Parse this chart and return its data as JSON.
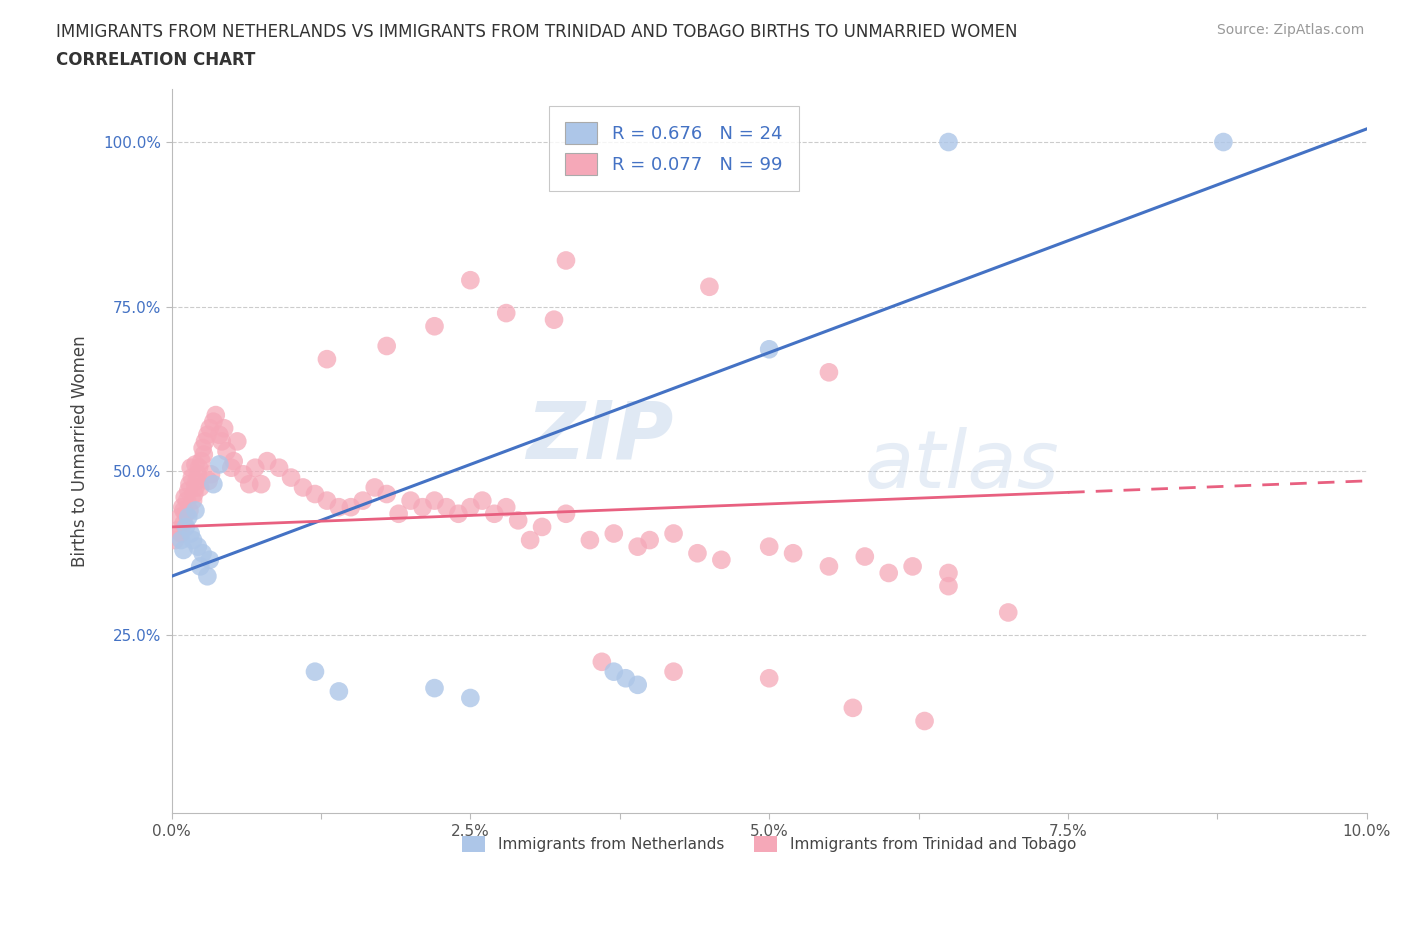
{
  "title_line1": "IMMIGRANTS FROM NETHERLANDS VS IMMIGRANTS FROM TRINIDAD AND TOBAGO BIRTHS TO UNMARRIED WOMEN",
  "title_line2": "CORRELATION CHART",
  "source_text": "Source: ZipAtlas.com",
  "ylabel": "Births to Unmarried Women",
  "xlim": [
    0.0,
    0.1
  ],
  "ylim": [
    -0.02,
    1.08
  ],
  "xtick_labels": [
    "0.0%",
    "",
    "2.5%",
    "",
    "5.0%",
    "",
    "7.5%",
    "",
    "10.0%"
  ],
  "xtick_vals": [
    0.0,
    0.0125,
    0.025,
    0.0375,
    0.05,
    0.0625,
    0.075,
    0.0875,
    0.1
  ],
  "ytick_labels": [
    "25.0%",
    "50.0%",
    "75.0%",
    "100.0%"
  ],
  "ytick_vals": [
    0.25,
    0.5,
    0.75,
    1.0
  ],
  "watermark_zip": "ZIP",
  "watermark_atlas": "atlas",
  "blue_R": "0.676",
  "blue_N": "24",
  "pink_R": "0.077",
  "pink_N": "99",
  "blue_color": "#adc6e8",
  "pink_color": "#f5a8b8",
  "blue_line_color": "#4472c4",
  "pink_line_color": "#e86080",
  "legend_label_blue": "Immigrants from Netherlands",
  "legend_label_pink": "Immigrants from Trinidad and Tobago",
  "blue_line_x": [
    0.0,
    0.1
  ],
  "blue_line_y": [
    0.34,
    1.02
  ],
  "pink_line_x": [
    0.0,
    0.1
  ],
  "pink_line_y": [
    0.415,
    0.485
  ],
  "blue_scatter_x": [
    0.0008,
    0.001,
    0.0012,
    0.0014,
    0.0016,
    0.0018,
    0.002,
    0.0022,
    0.0024,
    0.0026,
    0.003,
    0.0032,
    0.0035,
    0.004,
    0.012,
    0.014,
    0.022,
    0.025,
    0.037,
    0.038,
    0.039,
    0.05,
    0.065,
    0.088
  ],
  "blue_scatter_y": [
    0.395,
    0.38,
    0.415,
    0.43,
    0.405,
    0.395,
    0.44,
    0.385,
    0.355,
    0.375,
    0.34,
    0.365,
    0.48,
    0.51,
    0.195,
    0.165,
    0.17,
    0.155,
    0.195,
    0.185,
    0.175,
    0.685,
    1.0,
    1.0
  ],
  "pink_scatter_x": [
    0.0003,
    0.0005,
    0.0007,
    0.0008,
    0.0009,
    0.001,
    0.001,
    0.0011,
    0.0012,
    0.0013,
    0.0014,
    0.0015,
    0.0015,
    0.0016,
    0.0017,
    0.0018,
    0.0019,
    0.002,
    0.002,
    0.0021,
    0.0022,
    0.0023,
    0.0024,
    0.0025,
    0.0026,
    0.0027,
    0.0028,
    0.003,
    0.0031,
    0.0032,
    0.0033,
    0.0035,
    0.0037,
    0.004,
    0.0042,
    0.0044,
    0.0046,
    0.005,
    0.0052,
    0.0055,
    0.006,
    0.0065,
    0.007,
    0.0075,
    0.008,
    0.009,
    0.01,
    0.011,
    0.012,
    0.013,
    0.014,
    0.015,
    0.016,
    0.017,
    0.018,
    0.019,
    0.02,
    0.021,
    0.022,
    0.023,
    0.024,
    0.025,
    0.026,
    0.027,
    0.028,
    0.029,
    0.03,
    0.031,
    0.033,
    0.035,
    0.037,
    0.039,
    0.04,
    0.042,
    0.044,
    0.046,
    0.05,
    0.052,
    0.055,
    0.058,
    0.06,
    0.062,
    0.065,
    0.065,
    0.07,
    0.013,
    0.018,
    0.022,
    0.028,
    0.032,
    0.036,
    0.042,
    0.05,
    0.057,
    0.063,
    0.025,
    0.033,
    0.045,
    0.055
  ],
  "pink_scatter_y": [
    0.395,
    0.41,
    0.43,
    0.405,
    0.445,
    0.42,
    0.44,
    0.46,
    0.435,
    0.455,
    0.47,
    0.48,
    0.44,
    0.505,
    0.49,
    0.455,
    0.465,
    0.475,
    0.51,
    0.485,
    0.495,
    0.505,
    0.475,
    0.515,
    0.535,
    0.525,
    0.545,
    0.555,
    0.485,
    0.565,
    0.495,
    0.575,
    0.585,
    0.555,
    0.545,
    0.565,
    0.53,
    0.505,
    0.515,
    0.545,
    0.495,
    0.48,
    0.505,
    0.48,
    0.515,
    0.505,
    0.49,
    0.475,
    0.465,
    0.455,
    0.445,
    0.445,
    0.455,
    0.475,
    0.465,
    0.435,
    0.455,
    0.445,
    0.455,
    0.445,
    0.435,
    0.445,
    0.455,
    0.435,
    0.445,
    0.425,
    0.395,
    0.415,
    0.435,
    0.395,
    0.405,
    0.385,
    0.395,
    0.405,
    0.375,
    0.365,
    0.385,
    0.375,
    0.355,
    0.37,
    0.345,
    0.355,
    0.325,
    0.345,
    0.285,
    0.67,
    0.69,
    0.72,
    0.74,
    0.73,
    0.21,
    0.195,
    0.185,
    0.14,
    0.12,
    0.79,
    0.82,
    0.78,
    0.65
  ]
}
